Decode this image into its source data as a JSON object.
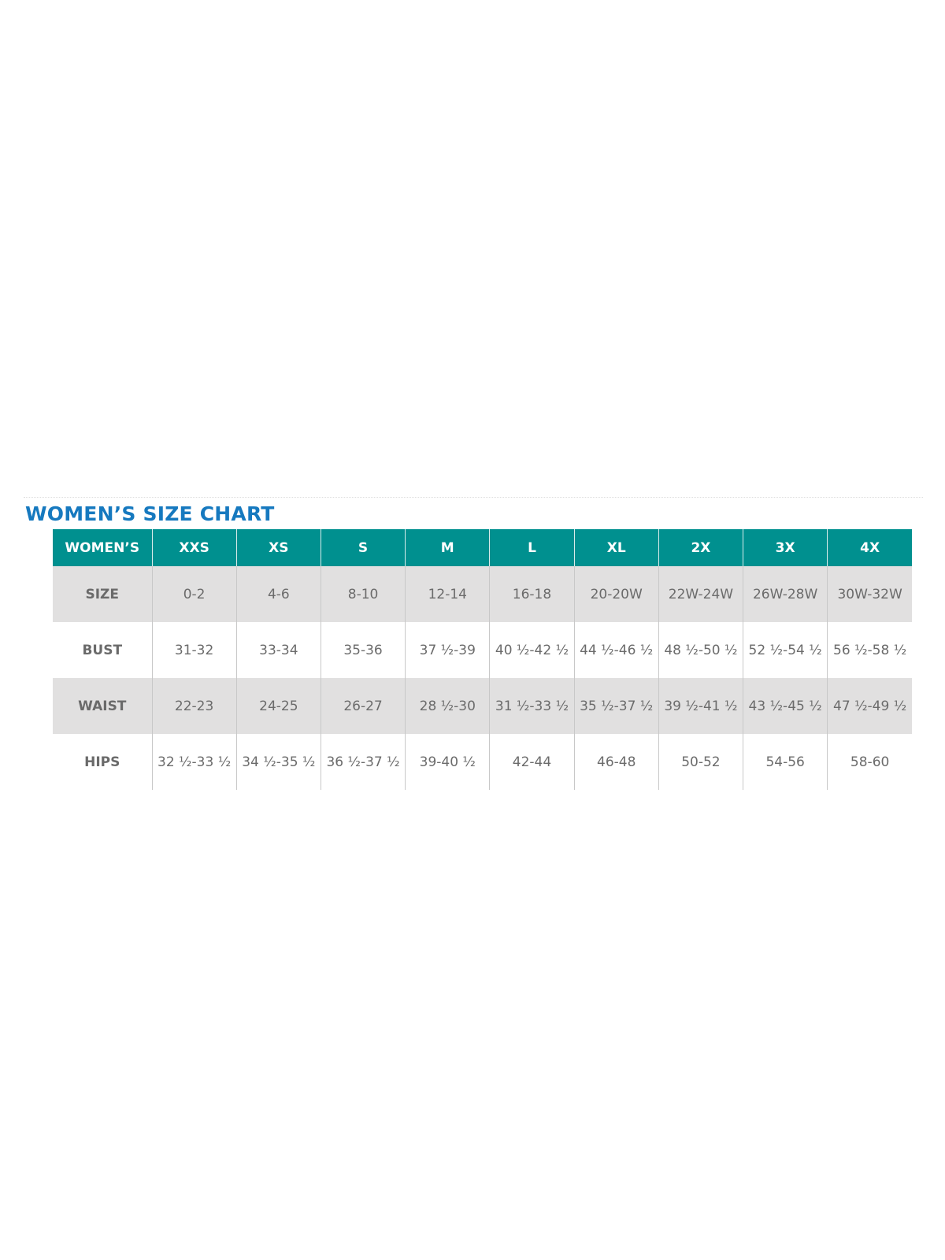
{
  "title": "WOMEN’S SIZE CHART",
  "colors": {
    "title": "#1679bf",
    "header": "#00908f",
    "shaded_row": "#e1e0e0",
    "text": "#6b6b6b"
  },
  "table": {
    "header": [
      "WOMEN’S",
      "XXS",
      "XS",
      "S",
      "M",
      "L",
      "XL",
      "2X",
      "3X",
      "4X"
    ],
    "rows": [
      {
        "label": "SIZE",
        "values": [
          "0-2",
          "4-6",
          "8-10",
          "12-14",
          "16-18",
          "20-20W",
          "22W-24W",
          "26W-28W",
          "30W-32W"
        ]
      },
      {
        "label": "BUST",
        "values": [
          "31-32",
          "33-34",
          "35-36",
          "37 ½-39",
          "40 ½-42 ½",
          "44 ½-46 ½",
          "48 ½-50 ½",
          "52 ½-54 ½",
          "56 ½-58 ½"
        ]
      },
      {
        "label": "WAIST",
        "values": [
          "22-23",
          "24-25",
          "26-27",
          "28 ½-30",
          "31 ½-33 ½",
          "35 ½-37 ½",
          "39 ½-41 ½",
          "43 ½-45 ½",
          "47 ½-49 ½"
        ]
      },
      {
        "label": "HIPS",
        "values": [
          "32 ½-33 ½",
          "34 ½-35 ½",
          "36 ½-37 ½",
          "39-40 ½",
          "42-44",
          "46-48",
          "50-52",
          "54-56",
          "58-60"
        ]
      }
    ]
  }
}
